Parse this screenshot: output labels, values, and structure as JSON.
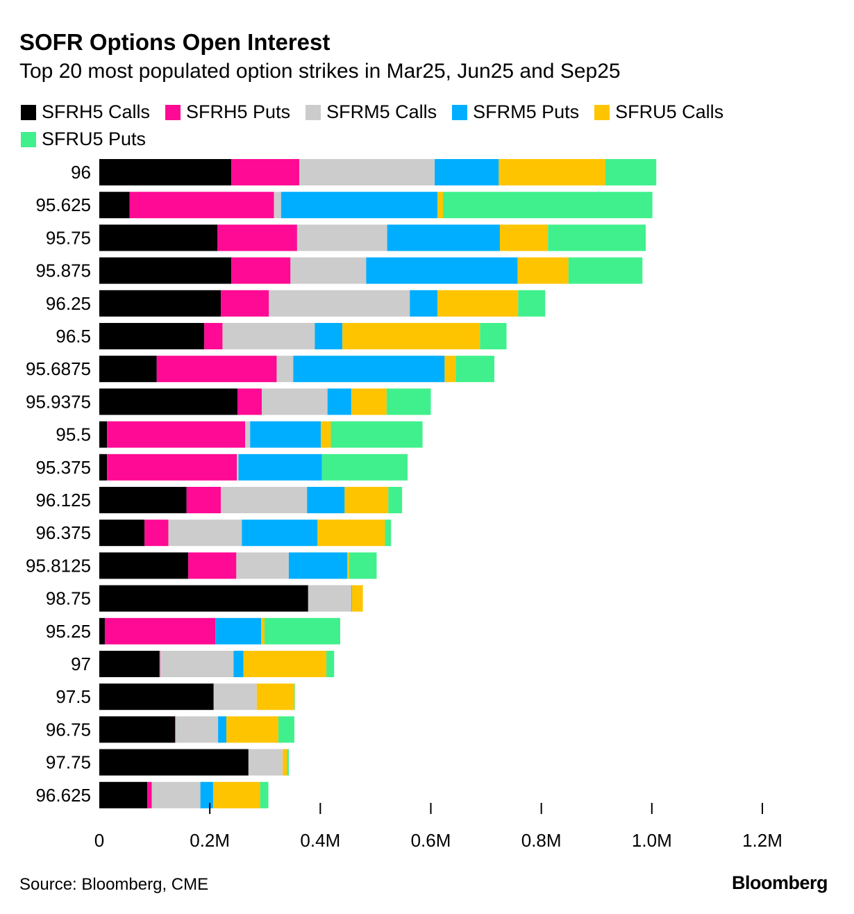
{
  "chart_data": {
    "type": "bar",
    "orientation": "horizontal",
    "stacked": true,
    "title": "SOFR Options Open Interest",
    "subtitle": "Top 20 most populated option strikes in Mar25, Jun25 and Sep25",
    "xlabel": "",
    "ylabel": "",
    "xlim": [
      0,
      1200000
    ],
    "x_ticks": [
      0,
      200000,
      400000,
      600000,
      800000,
      1000000,
      1200000
    ],
    "x_tick_labels": [
      "0",
      "0.2M",
      "0.4M",
      "0.6M",
      "0.8M",
      "1.0M",
      "1.2M"
    ],
    "legend_position": "top-left",
    "categories": [
      "96",
      "95.625",
      "95.75",
      "95.875",
      "96.25",
      "96.5",
      "95.6875",
      "95.9375",
      "95.5",
      "95.375",
      "96.125",
      "96.375",
      "95.8125",
      "98.75",
      "95.25",
      "97",
      "97.5",
      "96.75",
      "97.75",
      "96.625"
    ],
    "series": [
      {
        "name": "SFRH5 Calls",
        "color": "#000000",
        "values": [
          239000,
          55000,
          214000,
          239000,
          220000,
          190000,
          104000,
          250000,
          14000,
          14000,
          158000,
          82000,
          161000,
          378000,
          10000,
          109000,
          207000,
          137000,
          270000,
          87000
        ]
      },
      {
        "name": "SFRH5 Puts",
        "color": "#ff0a94",
        "values": [
          123000,
          261000,
          144000,
          107000,
          87000,
          33000,
          217000,
          44000,
          250000,
          235000,
          62000,
          43000,
          87000,
          0,
          200000,
          1000,
          0,
          1000,
          0,
          8000
        ]
      },
      {
        "name": "SFRM5 Calls",
        "color": "#cccccc",
        "values": [
          245000,
          13000,
          163000,
          137000,
          255000,
          167000,
          30000,
          119000,
          9000,
          3000,
          156000,
          133000,
          95000,
          78000,
          0,
          133000,
          78000,
          77000,
          62000,
          88000
        ]
      },
      {
        "name": "SFRM5 Puts",
        "color": "#00aeff",
        "values": [
          116000,
          283000,
          204000,
          274000,
          50000,
          50000,
          274000,
          43000,
          128000,
          151000,
          68000,
          137000,
          106000,
          1000,
          83000,
          18000,
          0,
          15000,
          0,
          23000
        ]
      },
      {
        "name": "SFRU5 Calls",
        "color": "#ffc400",
        "values": [
          193000,
          10000,
          87000,
          92000,
          146000,
          249000,
          20000,
          64000,
          18000,
          0,
          79000,
          122000,
          3000,
          20000,
          6000,
          150000,
          68000,
          94000,
          8000,
          85000
        ]
      },
      {
        "name": "SFRU5 Puts",
        "color": "#40f08c",
        "values": [
          92000,
          379000,
          177000,
          134000,
          49000,
          48000,
          70000,
          80000,
          166000,
          155000,
          25000,
          11000,
          50000,
          0,
          137000,
          14000,
          1000,
          29000,
          3000,
          15000
        ]
      }
    ]
  },
  "footer": {
    "source": "Source: Bloomberg, CME",
    "brand": "Bloomberg"
  }
}
